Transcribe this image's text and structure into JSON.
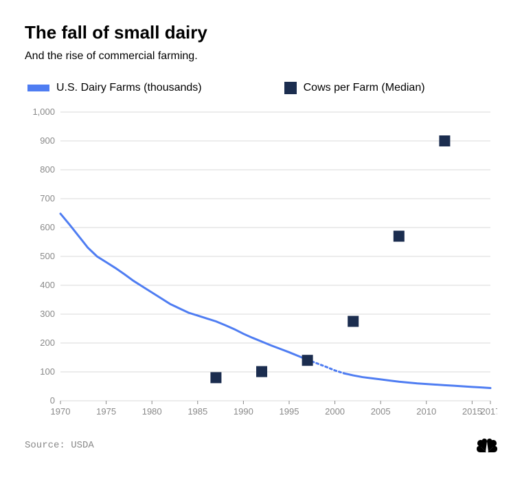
{
  "title": "The fall of small dairy",
  "subtitle": "And the rise of commercial farming.",
  "source_label": "Source: USDA",
  "legend": {
    "series1": "U.S. Dairy Farms (thousands)",
    "series2": "Cows per Farm (Median)"
  },
  "chart": {
    "type": "line+scatter",
    "background_color": "#ffffff",
    "grid_color": "#d9d9d9",
    "axis_text_color": "#888888",
    "axis_fontsize": 13,
    "xlim": [
      1970,
      2017
    ],
    "ylim": [
      0,
      1000
    ],
    "xtick_start": 1970,
    "xtick_step": 5,
    "xtick_last": 2017,
    "ytick_start": 0,
    "ytick_step": 100,
    "ytick_format": "comma",
    "line_series": {
      "color": "#4f7df2",
      "width": 3,
      "dotted_segment": [
        1997,
        2001
      ],
      "points": [
        [
          1970,
          648
        ],
        [
          1971,
          610
        ],
        [
          1972,
          570
        ],
        [
          1973,
          530
        ],
        [
          1974,
          500
        ],
        [
          1975,
          480
        ],
        [
          1976,
          460
        ],
        [
          1977,
          438
        ],
        [
          1978,
          415
        ],
        [
          1979,
          395
        ],
        [
          1980,
          375
        ],
        [
          1981,
          355
        ],
        [
          1982,
          335
        ],
        [
          1983,
          320
        ],
        [
          1984,
          305
        ],
        [
          1985,
          295
        ],
        [
          1986,
          285
        ],
        [
          1987,
          275
        ],
        [
          1988,
          262
        ],
        [
          1989,
          248
        ],
        [
          1990,
          232
        ],
        [
          1991,
          218
        ],
        [
          1992,
          205
        ],
        [
          1993,
          192
        ],
        [
          1994,
          180
        ],
        [
          1995,
          168
        ],
        [
          1996,
          155
        ],
        [
          1997,
          142
        ],
        [
          1998,
          130
        ],
        [
          1999,
          118
        ],
        [
          2000,
          105
        ],
        [
          2001,
          95
        ],
        [
          2002,
          88
        ],
        [
          2003,
          82
        ],
        [
          2004,
          78
        ],
        [
          2005,
          74
        ],
        [
          2006,
          70
        ],
        [
          2007,
          66
        ],
        [
          2008,
          63
        ],
        [
          2009,
          60
        ],
        [
          2010,
          58
        ],
        [
          2011,
          56
        ],
        [
          2012,
          54
        ],
        [
          2013,
          52
        ],
        [
          2014,
          50
        ],
        [
          2015,
          48
        ],
        [
          2016,
          46
        ],
        [
          2017,
          44
        ]
      ]
    },
    "scatter_series": {
      "color": "#1b2d4f",
      "marker": "square",
      "size": 16,
      "points": [
        [
          1987,
          80
        ],
        [
          1992,
          101
        ],
        [
          1997,
          140
        ],
        [
          2002,
          275
        ],
        [
          2007,
          570
        ],
        [
          2012,
          900
        ]
      ]
    }
  },
  "logo": {
    "name": "nbc-peacock",
    "color": "#000000"
  }
}
